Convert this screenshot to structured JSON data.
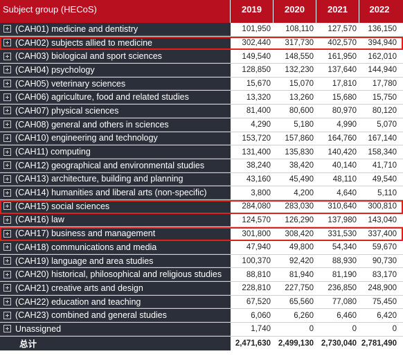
{
  "header": {
    "subject_col": "Subject group (HECoS)",
    "years": [
      "2019",
      "2020",
      "2021",
      "2022"
    ]
  },
  "rows": [
    {
      "label": "(CAH01) medicine and dentistry",
      "values": [
        "101,950",
        "108,110",
        "127,570",
        "136,150"
      ],
      "highlight": false
    },
    {
      "label": "(CAH02) subjects allied to medicine",
      "values": [
        "302,440",
        "317,730",
        "402,570",
        "394,940"
      ],
      "highlight": true
    },
    {
      "label": "(CAH03) biological and sport sciences",
      "values": [
        "149,540",
        "148,550",
        "161,950",
        "162,010"
      ],
      "highlight": false
    },
    {
      "label": "(CAH04) psychology",
      "values": [
        "128,850",
        "132,230",
        "137,640",
        "144,940"
      ],
      "highlight": false
    },
    {
      "label": "(CAH05) veterinary sciences",
      "values": [
        "15,670",
        "15,070",
        "17,810",
        "17,780"
      ],
      "highlight": false
    },
    {
      "label": "(CAH06) agriculture, food and related studies",
      "values": [
        "13,320",
        "13,260",
        "15,680",
        "15,750"
      ],
      "highlight": false
    },
    {
      "label": "(CAH07) physical sciences",
      "values": [
        "81,400",
        "80,600",
        "80,970",
        "80,120"
      ],
      "highlight": false
    },
    {
      "label": "(CAH08) general and others in sciences",
      "values": [
        "4,290",
        "5,180",
        "4,990",
        "5,070"
      ],
      "highlight": false
    },
    {
      "label": "(CAH10) engineering and technology",
      "values": [
        "153,720",
        "157,860",
        "164,760",
        "167,140"
      ],
      "highlight": false
    },
    {
      "label": "(CAH11) computing",
      "values": [
        "131,400",
        "135,830",
        "140,420",
        "158,340"
      ],
      "highlight": false
    },
    {
      "label": "(CAH12) geographical and environmental studies",
      "values": [
        "38,240",
        "38,420",
        "40,140",
        "41,710"
      ],
      "highlight": false
    },
    {
      "label": "(CAH13) architecture, building and planning",
      "values": [
        "43,160",
        "45,490",
        "48,110",
        "49,540"
      ],
      "highlight": false
    },
    {
      "label": "(CAH14) humanities and liberal arts (non-specific)",
      "values": [
        "3,800",
        "4,200",
        "4,640",
        "5,110"
      ],
      "highlight": false
    },
    {
      "label": "(CAH15) social sciences",
      "values": [
        "284,080",
        "283,030",
        "310,640",
        "300,810"
      ],
      "highlight": true
    },
    {
      "label": "(CAH16) law",
      "values": [
        "124,570",
        "126,290",
        "137,980",
        "143,040"
      ],
      "highlight": false
    },
    {
      "label": "(CAH17) business and management",
      "values": [
        "301,800",
        "308,420",
        "331,530",
        "337,400"
      ],
      "highlight": true
    },
    {
      "label": "(CAH18) communications and media",
      "values": [
        "47,940",
        "49,800",
        "54,340",
        "59,670"
      ],
      "highlight": false
    },
    {
      "label": "(CAH19) language and area studies",
      "values": [
        "100,370",
        "92,420",
        "88,930",
        "90,730"
      ],
      "highlight": false
    },
    {
      "label": "(CAH20) historical, philosophical and religious studies",
      "values": [
        "88,810",
        "81,940",
        "81,190",
        "83,170"
      ],
      "highlight": false
    },
    {
      "label": "(CAH21) creative arts and design",
      "values": [
        "228,810",
        "227,750",
        "236,850",
        "248,900"
      ],
      "highlight": false
    },
    {
      "label": "(CAH22) education and teaching",
      "values": [
        "67,520",
        "65,560",
        "77,080",
        "75,450"
      ],
      "highlight": false
    },
    {
      "label": "(CAH23) combined and general studies",
      "values": [
        "6,060",
        "6,260",
        "6,460",
        "6,420"
      ],
      "highlight": false
    },
    {
      "label": "Unassigned",
      "values": [
        "1,740",
        "0",
        "0",
        "0"
      ],
      "highlight": false
    }
  ],
  "total": {
    "label": "总计",
    "values": [
      "2,471,630",
      "2,499,130",
      "2,730,040",
      "2,781,490"
    ]
  },
  "colors": {
    "header_bg": "#b8101f",
    "label_bg": "#2b2f3a",
    "highlight_border": "#e0201a"
  }
}
